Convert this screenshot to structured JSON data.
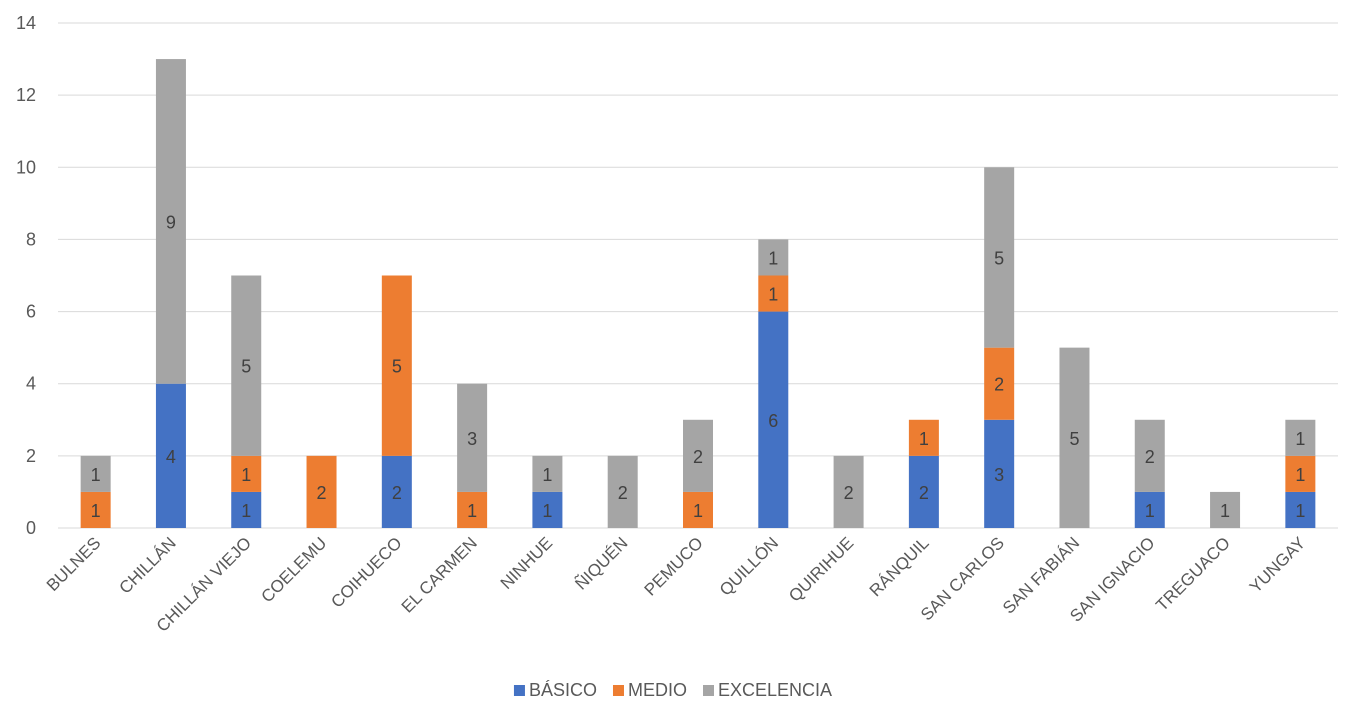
{
  "chart_data": {
    "type": "bar",
    "stacked": true,
    "categories": [
      "BULNES",
      "CHILLÁN",
      "CHILLÁN VIEJO",
      "COELEMU",
      "COIHUECO",
      "EL CARMEN",
      "NINHUE",
      "ÑIQUÉN",
      "PEMUCO",
      "QUILLÓN",
      "QUIRIHUE",
      "RÁNQUIL",
      "SAN CARLOS",
      "SAN FABIÁN",
      "SAN IGNACIO",
      "TREGUACO",
      "YUNGAY"
    ],
    "series": [
      {
        "name": "BÁSICO",
        "color": "#4472c4",
        "values": [
          0,
          4,
          1,
          0,
          2,
          0,
          1,
          0,
          0,
          6,
          0,
          2,
          3,
          0,
          1,
          0,
          1
        ]
      },
      {
        "name": "MEDIO",
        "color": "#ed7d31",
        "values": [
          1,
          0,
          1,
          2,
          5,
          1,
          0,
          0,
          1,
          1,
          0,
          1,
          2,
          0,
          0,
          0,
          1
        ]
      },
      {
        "name": "EXCELENCIA",
        "color": "#a5a5a5",
        "values": [
          1,
          9,
          5,
          0,
          0,
          3,
          1,
          2,
          2,
          1,
          2,
          0,
          5,
          5,
          2,
          1,
          1
        ]
      }
    ],
    "yticks": [
      "0",
      "2",
      "4",
      "6",
      "8",
      "10",
      "12",
      "14"
    ],
    "ylim": [
      0,
      14
    ],
    "grid": true,
    "legend_position": "bottom",
    "data_labels": true
  }
}
